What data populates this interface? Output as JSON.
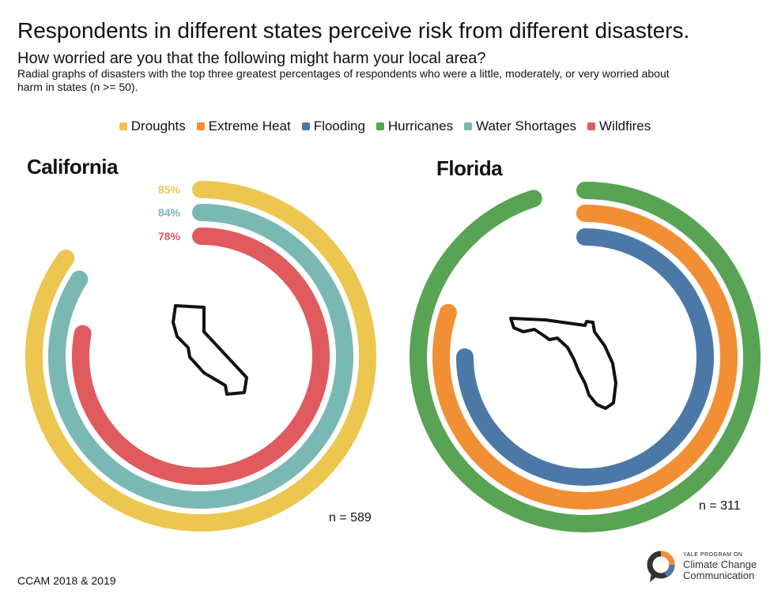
{
  "title": "Respondents in different states perceive risk from different disasters.",
  "subtitle": "How worried are you that the following might harm your local area?",
  "description": "Radial graphs of disasters with the top three greatest percentages of respondents who were a little, moderately, or very worried about harm in states (n >= 50).",
  "legend": [
    {
      "name": "Droughts",
      "color": "#ecc64e"
    },
    {
      "name": "Extreme Heat",
      "color": "#f28e34"
    },
    {
      "name": "Flooding",
      "color": "#4c78a8"
    },
    {
      "name": "Hurricanes",
      "color": "#58a454"
    },
    {
      "name": "Water Shortages",
      "color": "#7ab8b3"
    },
    {
      "name": "Wildfires",
      "color": "#e05a5e"
    }
  ],
  "source": "CCAM 2018 & 2019",
  "logo": {
    "line1": "YALE PROGRAM ON",
    "line2": "Climate Change",
    "line3": "Communication"
  },
  "chart_data": [
    {
      "type": "radial-bar",
      "title": "California",
      "n_label": "n = 589",
      "series": [
        {
          "name": "Droughts",
          "value": 85,
          "label": "85%",
          "color": "#ecc64e"
        },
        {
          "name": "Water Shortages",
          "value": 84,
          "label": "84%",
          "color": "#7ab8b3"
        },
        {
          "name": "Wildfires",
          "value": 78,
          "label": "78%",
          "color": "#e05a5e"
        }
      ],
      "max": 100,
      "icon": "california-outline-icon"
    },
    {
      "type": "radial-bar",
      "title": "Florida",
      "n_label": "n = 311",
      "series": [
        {
          "name": "Hurricanes",
          "value": 95,
          "color": "#58a454"
        },
        {
          "name": "Extreme Heat",
          "value": 80,
          "color": "#f28e34"
        },
        {
          "name": "Flooding",
          "value": 75,
          "color": "#4c78a8"
        }
      ],
      "max": 100,
      "icon": "florida-outline-icon"
    }
  ]
}
